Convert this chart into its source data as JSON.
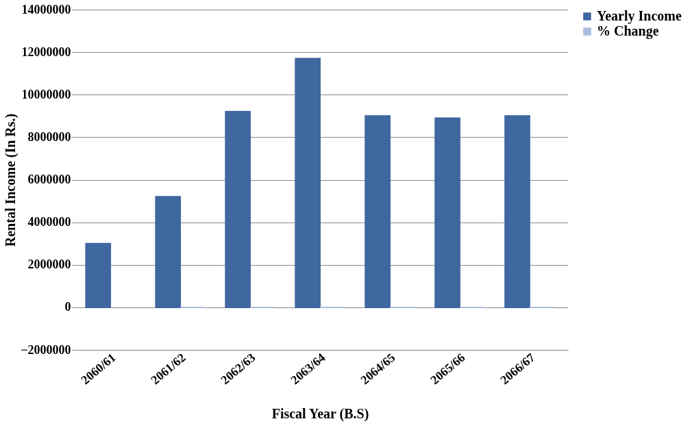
{
  "chart_data": {
    "type": "bar",
    "xlabel": "Fiscal Year (B.S)",
    "ylabel": "Rental Income (In Rs.)",
    "categories": [
      "2060/61",
      "2061/62",
      "2062/63",
      "2063/64",
      "2064/65",
      "2065/66",
      "2066/67"
    ],
    "series": [
      {
        "name": "Yearly Income",
        "color": "#3f67a0",
        "values": [
          3000000,
          5200000,
          9200000,
          11700000,
          9000000,
          8900000,
          9000000
        ]
      },
      {
        "name": "% Change",
        "color": "#a9bce0",
        "values": [
          null,
          0,
          0,
          0,
          0,
          0,
          0
        ]
      }
    ],
    "ylim": [
      -2000000,
      14000000
    ],
    "yticks": [
      -2000000,
      0,
      2000000,
      4000000,
      6000000,
      8000000,
      10000000,
      12000000,
      14000000
    ],
    "grid": "y",
    "legend": "right"
  }
}
